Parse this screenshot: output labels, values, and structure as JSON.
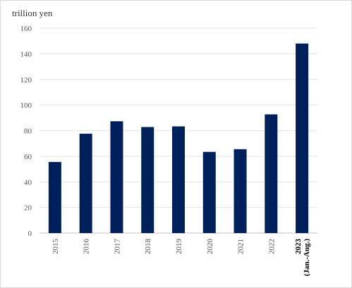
{
  "chart_data": {
    "type": "bar",
    "ylabel": "trillion yen",
    "categories": [
      "2015",
      "2016",
      "2017",
      "2018",
      "2019",
      "2020",
      "2021",
      "2022",
      "2023\n(Jan.-Aug.)"
    ],
    "values": [
      55.5,
      77.6,
      87.3,
      82.8,
      83.3,
      63.4,
      65.5,
      92.7,
      148
    ],
    "ylim": [
      0,
      160
    ],
    "yticks": [
      0,
      20,
      40,
      60,
      80,
      100,
      120,
      140,
      160
    ],
    "grid": true,
    "bar_color": "#00205b"
  }
}
